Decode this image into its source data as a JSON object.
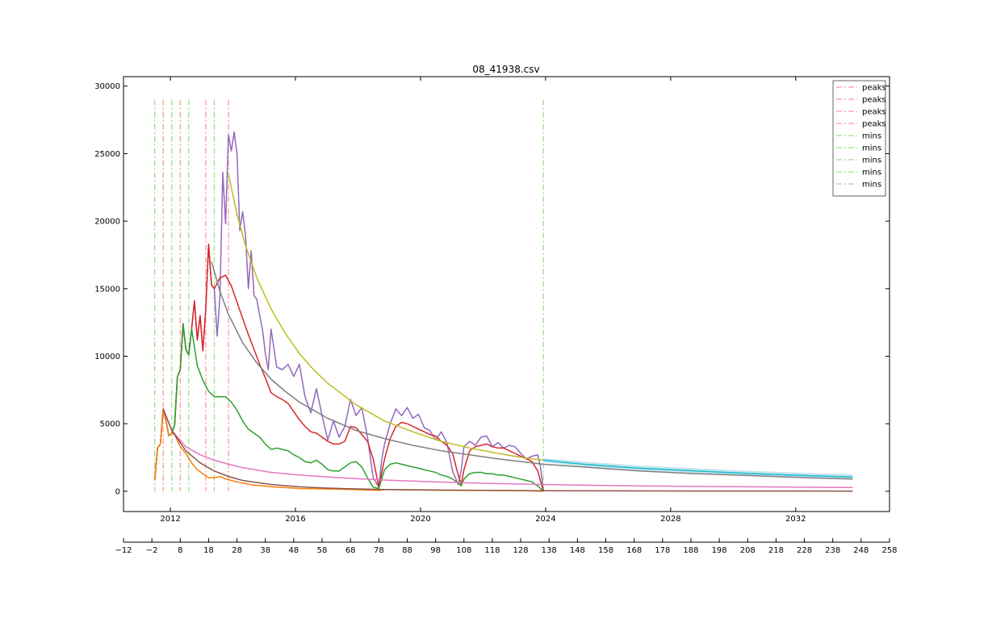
{
  "chart_data": {
    "type": "line",
    "title": "08_41938.csv",
    "xlabel": "",
    "ylabel": "",
    "x_date_ticks": [
      "2012",
      "2016",
      "2020",
      "2024",
      "2028",
      "2032"
    ],
    "x_date_tick_years": [
      2012,
      2016,
      2020,
      2024,
      2028,
      2032
    ],
    "x_date_range": [
      2010.5,
      2035
    ],
    "x_index_range": [
      -12,
      258
    ],
    "x_index_ticks": [
      -12,
      -2,
      8,
      18,
      28,
      38,
      48,
      58,
      68,
      78,
      88,
      98,
      108,
      118,
      128,
      138,
      148,
      158,
      168,
      178,
      188,
      198,
      208,
      218,
      228,
      238,
      248,
      258
    ],
    "y_ticks": [
      0,
      5000,
      10000,
      15000,
      20000,
      25000,
      30000
    ],
    "ylim": [
      -1500,
      30700
    ],
    "grid": false,
    "legend_position": "top-right",
    "legend": [
      {
        "label": "peaks",
        "color": "#ff9896"
      },
      {
        "label": "peaks",
        "color": "#ff9896"
      },
      {
        "label": "peaks",
        "color": "#ff9896"
      },
      {
        "label": "peaks",
        "color": "#ff9896"
      },
      {
        "label": "mins",
        "color": "#98df8a"
      },
      {
        "label": "mins",
        "color": "#98df8a"
      },
      {
        "label": "mins",
        "color": "#98df8a"
      },
      {
        "label": "mins",
        "color": "#98df8a"
      },
      {
        "label": "mins",
        "color": "#98df8a"
      }
    ],
    "peak_lines_x": [
      2,
      8,
      17,
      25
    ],
    "min_lines_x": [
      -1,
      5,
      11,
      20,
      136
    ],
    "vline_top": 29000,
    "series": [
      {
        "color": "#9467bd",
        "x": [
          -1,
          0,
          1,
          2,
          3,
          4,
          5,
          6,
          7,
          8,
          9,
          10,
          11,
          12,
          13,
          14,
          15,
          16,
          17,
          18,
          19,
          20,
          21,
          22,
          23,
          24,
          25,
          26,
          27,
          28,
          29,
          30,
          31,
          32,
          33,
          34,
          35,
          36,
          37,
          38,
          39,
          40,
          42,
          44,
          46,
          48,
          50,
          52,
          54,
          56,
          58,
          60,
          62,
          64,
          66,
          68,
          70,
          72,
          74,
          76,
          78,
          79,
          80,
          82,
          84,
          86,
          88,
          90,
          92,
          94,
          96,
          98,
          100,
          102,
          104,
          106,
          107,
          108,
          110,
          112,
          114,
          116,
          118,
          120,
          122,
          124,
          126,
          128,
          130,
          132,
          134,
          135,
          136
        ],
        "y": [
          800,
          3200,
          3500,
          6100,
          5200,
          4100,
          4300,
          4900,
          8500,
          9000,
          12400,
          10500,
          10100,
          12000,
          14100,
          11200,
          13000,
          10400,
          13500,
          18300,
          15300,
          15000,
          11500,
          14400,
          23600,
          19800,
          26400,
          25200,
          26600,
          25000,
          19300,
          20700,
          19000,
          15000,
          17800,
          14500,
          14200,
          13000,
          12000,
          10200,
          9000,
          12000,
          9200,
          9000,
          9400,
          8500,
          9400,
          7000,
          5800,
          7600,
          5600,
          3800,
          5200,
          4000,
          4800,
          6800,
          5600,
          6200,
          4000,
          1000,
          300,
          2300,
          3500,
          5000,
          6100,
          5600,
          6200,
          5400,
          5700,
          4700,
          4500,
          3800,
          4400,
          3600,
          1500,
          500,
          1500,
          3300,
          3700,
          3400,
          4000,
          4100,
          3300,
          3600,
          3200,
          3400,
          3300,
          2800,
          2400,
          2600,
          2700,
          1800,
          0
        ]
      },
      {
        "color": "#d62728",
        "x": [
          -1,
          0,
          1,
          2,
          3,
          4,
          5,
          6,
          7,
          8,
          9,
          10,
          11,
          12,
          13,
          14,
          15,
          16,
          17,
          18,
          19,
          20,
          22,
          24,
          26,
          28,
          30,
          32,
          34,
          36,
          38,
          40,
          42,
          44,
          46,
          48,
          50,
          52,
          54,
          56,
          58,
          60,
          62,
          64,
          66,
          68,
          70,
          72,
          74,
          76,
          78,
          80,
          82,
          84,
          86,
          88,
          90,
          92,
          94,
          96,
          98,
          100,
          102,
          104,
          106,
          107,
          108,
          110,
          112,
          114,
          116,
          118,
          120,
          122,
          124,
          126,
          128,
          130,
          132,
          134,
          136
        ],
        "y": [
          800,
          3200,
          3500,
          6100,
          5200,
          4100,
          4300,
          4900,
          8500,
          9000,
          12400,
          10500,
          10100,
          12000,
          14100,
          11200,
          13000,
          10400,
          13500,
          18300,
          15300,
          15000,
          15800,
          16000,
          15200,
          14000,
          12800,
          11600,
          10500,
          9400,
          8400,
          7300,
          7000,
          6800,
          6500,
          5900,
          5300,
          4800,
          4400,
          4300,
          4000,
          3700,
          3500,
          3500,
          3700,
          4800,
          4700,
          4200,
          3700,
          2400,
          300,
          2400,
          3900,
          4800,
          5100,
          5000,
          4800,
          4600,
          4400,
          4200,
          4100,
          3700,
          3400,
          2800,
          1200,
          500,
          1600,
          3000,
          3300,
          3400,
          3500,
          3300,
          3200,
          3200,
          3000,
          2800,
          2600,
          2400,
          2200,
          1500,
          0
        ]
      },
      {
        "color": "#2ca02c",
        "x": [
          -1,
          0,
          1,
          2,
          3,
          4,
          5,
          6,
          7,
          8,
          9,
          10,
          11,
          12,
          14,
          16,
          18,
          20,
          22,
          24,
          26,
          28,
          30,
          32,
          34,
          36,
          38,
          40,
          42,
          44,
          46,
          48,
          50,
          52,
          54,
          56,
          58,
          60,
          62,
          64,
          66,
          68,
          70,
          72,
          74,
          76,
          78,
          80,
          82,
          84,
          86,
          88,
          90,
          92,
          94,
          96,
          98,
          100,
          102,
          104,
          106,
          107,
          108,
          110,
          112,
          114,
          116,
          118,
          120,
          122,
          124,
          126,
          128,
          130,
          132,
          134,
          136
        ],
        "y": [
          800,
          3200,
          3500,
          6100,
          5200,
          4100,
          4300,
          4900,
          8500,
          9000,
          12400,
          10500,
          10100,
          12000,
          9300,
          8200,
          7400,
          7000,
          7000,
          7000,
          6600,
          6000,
          5200,
          4600,
          4300,
          4000,
          3500,
          3100,
          3200,
          3100,
          3000,
          2700,
          2500,
          2200,
          2100,
          2300,
          2000,
          1600,
          1500,
          1500,
          1800,
          2100,
          2200,
          1800,
          1000,
          300,
          200,
          1600,
          2000,
          2100,
          2000,
          1900,
          1800,
          1700,
          1600,
          1500,
          1400,
          1200,
          1100,
          900,
          600,
          400,
          900,
          1300,
          1400,
          1400,
          1300,
          1300,
          1200,
          1200,
          1100,
          1000,
          900,
          800,
          700,
          400,
          0
        ]
      },
      {
        "color": "#ff7f0e",
        "x": [
          -1,
          0,
          1,
          2,
          3,
          4,
          5,
          6,
          8,
          10,
          12,
          14,
          16,
          18,
          20,
          22,
          24,
          26,
          28,
          30,
          34,
          38,
          42,
          46,
          50,
          56,
          62,
          70,
          78,
          80,
          84,
          90,
          100,
          110,
          120,
          130,
          136
        ],
        "y": [
          800,
          3200,
          3500,
          6100,
          5200,
          4100,
          4300,
          4200,
          3300,
          2800,
          2100,
          1600,
          1300,
          1000,
          1000,
          1100,
          900,
          800,
          700,
          600,
          450,
          380,
          300,
          260,
          200,
          180,
          160,
          120,
          60,
          120,
          120,
          100,
          80,
          60,
          60,
          40,
          0
        ]
      },
      {
        "color": "#e377c2",
        "x": [
          2,
          5,
          10,
          15,
          20,
          25,
          30,
          40,
          50,
          60,
          70,
          80,
          90,
          100,
          110,
          120,
          136,
          150,
          170,
          190,
          210,
          230,
          245
        ],
        "y": [
          6100,
          4500,
          3300,
          2700,
          2300,
          2000,
          1750,
          1400,
          1200,
          1050,
          930,
          830,
          750,
          680,
          620,
          570,
          500,
          450,
          400,
          360,
          330,
          300,
          280
        ]
      },
      {
        "color": "#7f7f7f",
        "x": [
          19,
          22,
          25,
          30,
          35,
          40,
          45,
          50,
          60,
          70,
          80,
          90,
          100,
          110,
          120,
          136,
          150,
          170,
          190,
          210,
          230,
          245
        ],
        "y": [
          17000,
          14800,
          13100,
          11000,
          9500,
          8300,
          7400,
          6600,
          5400,
          4500,
          3900,
          3400,
          3000,
          2700,
          2400,
          2000,
          1800,
          1500,
          1300,
          1150,
          1000,
          900
        ]
      },
      {
        "color": "#bcbd22",
        "x": [
          25,
          28,
          31,
          35,
          40,
          45,
          50,
          55,
          60,
          70,
          80,
          90,
          100,
          110,
          120,
          130,
          136
        ],
        "y": [
          23500,
          20500,
          18200,
          15800,
          13500,
          11700,
          10200,
          9000,
          8000,
          6400,
          5200,
          4400,
          3700,
          3200,
          2800,
          2450,
          2300
        ]
      },
      {
        "color": "#17becf",
        "x": [
          136,
          150,
          170,
          190,
          210,
          230,
          245
        ],
        "y": [
          2300,
          2000,
          1700,
          1500,
          1300,
          1150,
          1050
        ]
      },
      {
        "color": "#8c564b",
        "x": [
          2,
          5,
          10,
          15,
          20,
          25,
          30,
          40,
          50,
          60,
          70,
          80,
          100,
          120,
          136,
          160,
          190,
          220,
          245
        ],
        "y": [
          6100,
          4500,
          3000,
          2100,
          1500,
          1100,
          800,
          500,
          330,
          230,
          170,
          130,
          90,
          60,
          40,
          30,
          20,
          15,
          10
        ]
      }
    ],
    "band": {
      "color": "#add8e6",
      "x": [
        136,
        150,
        170,
        190,
        210,
        230,
        245
      ],
      "y_low": [
        2150,
        1850,
        1550,
        1350,
        1150,
        1000,
        900
      ],
      "y_high": [
        2450,
        2200,
        1900,
        1700,
        1500,
        1350,
        1250
      ]
    }
  }
}
